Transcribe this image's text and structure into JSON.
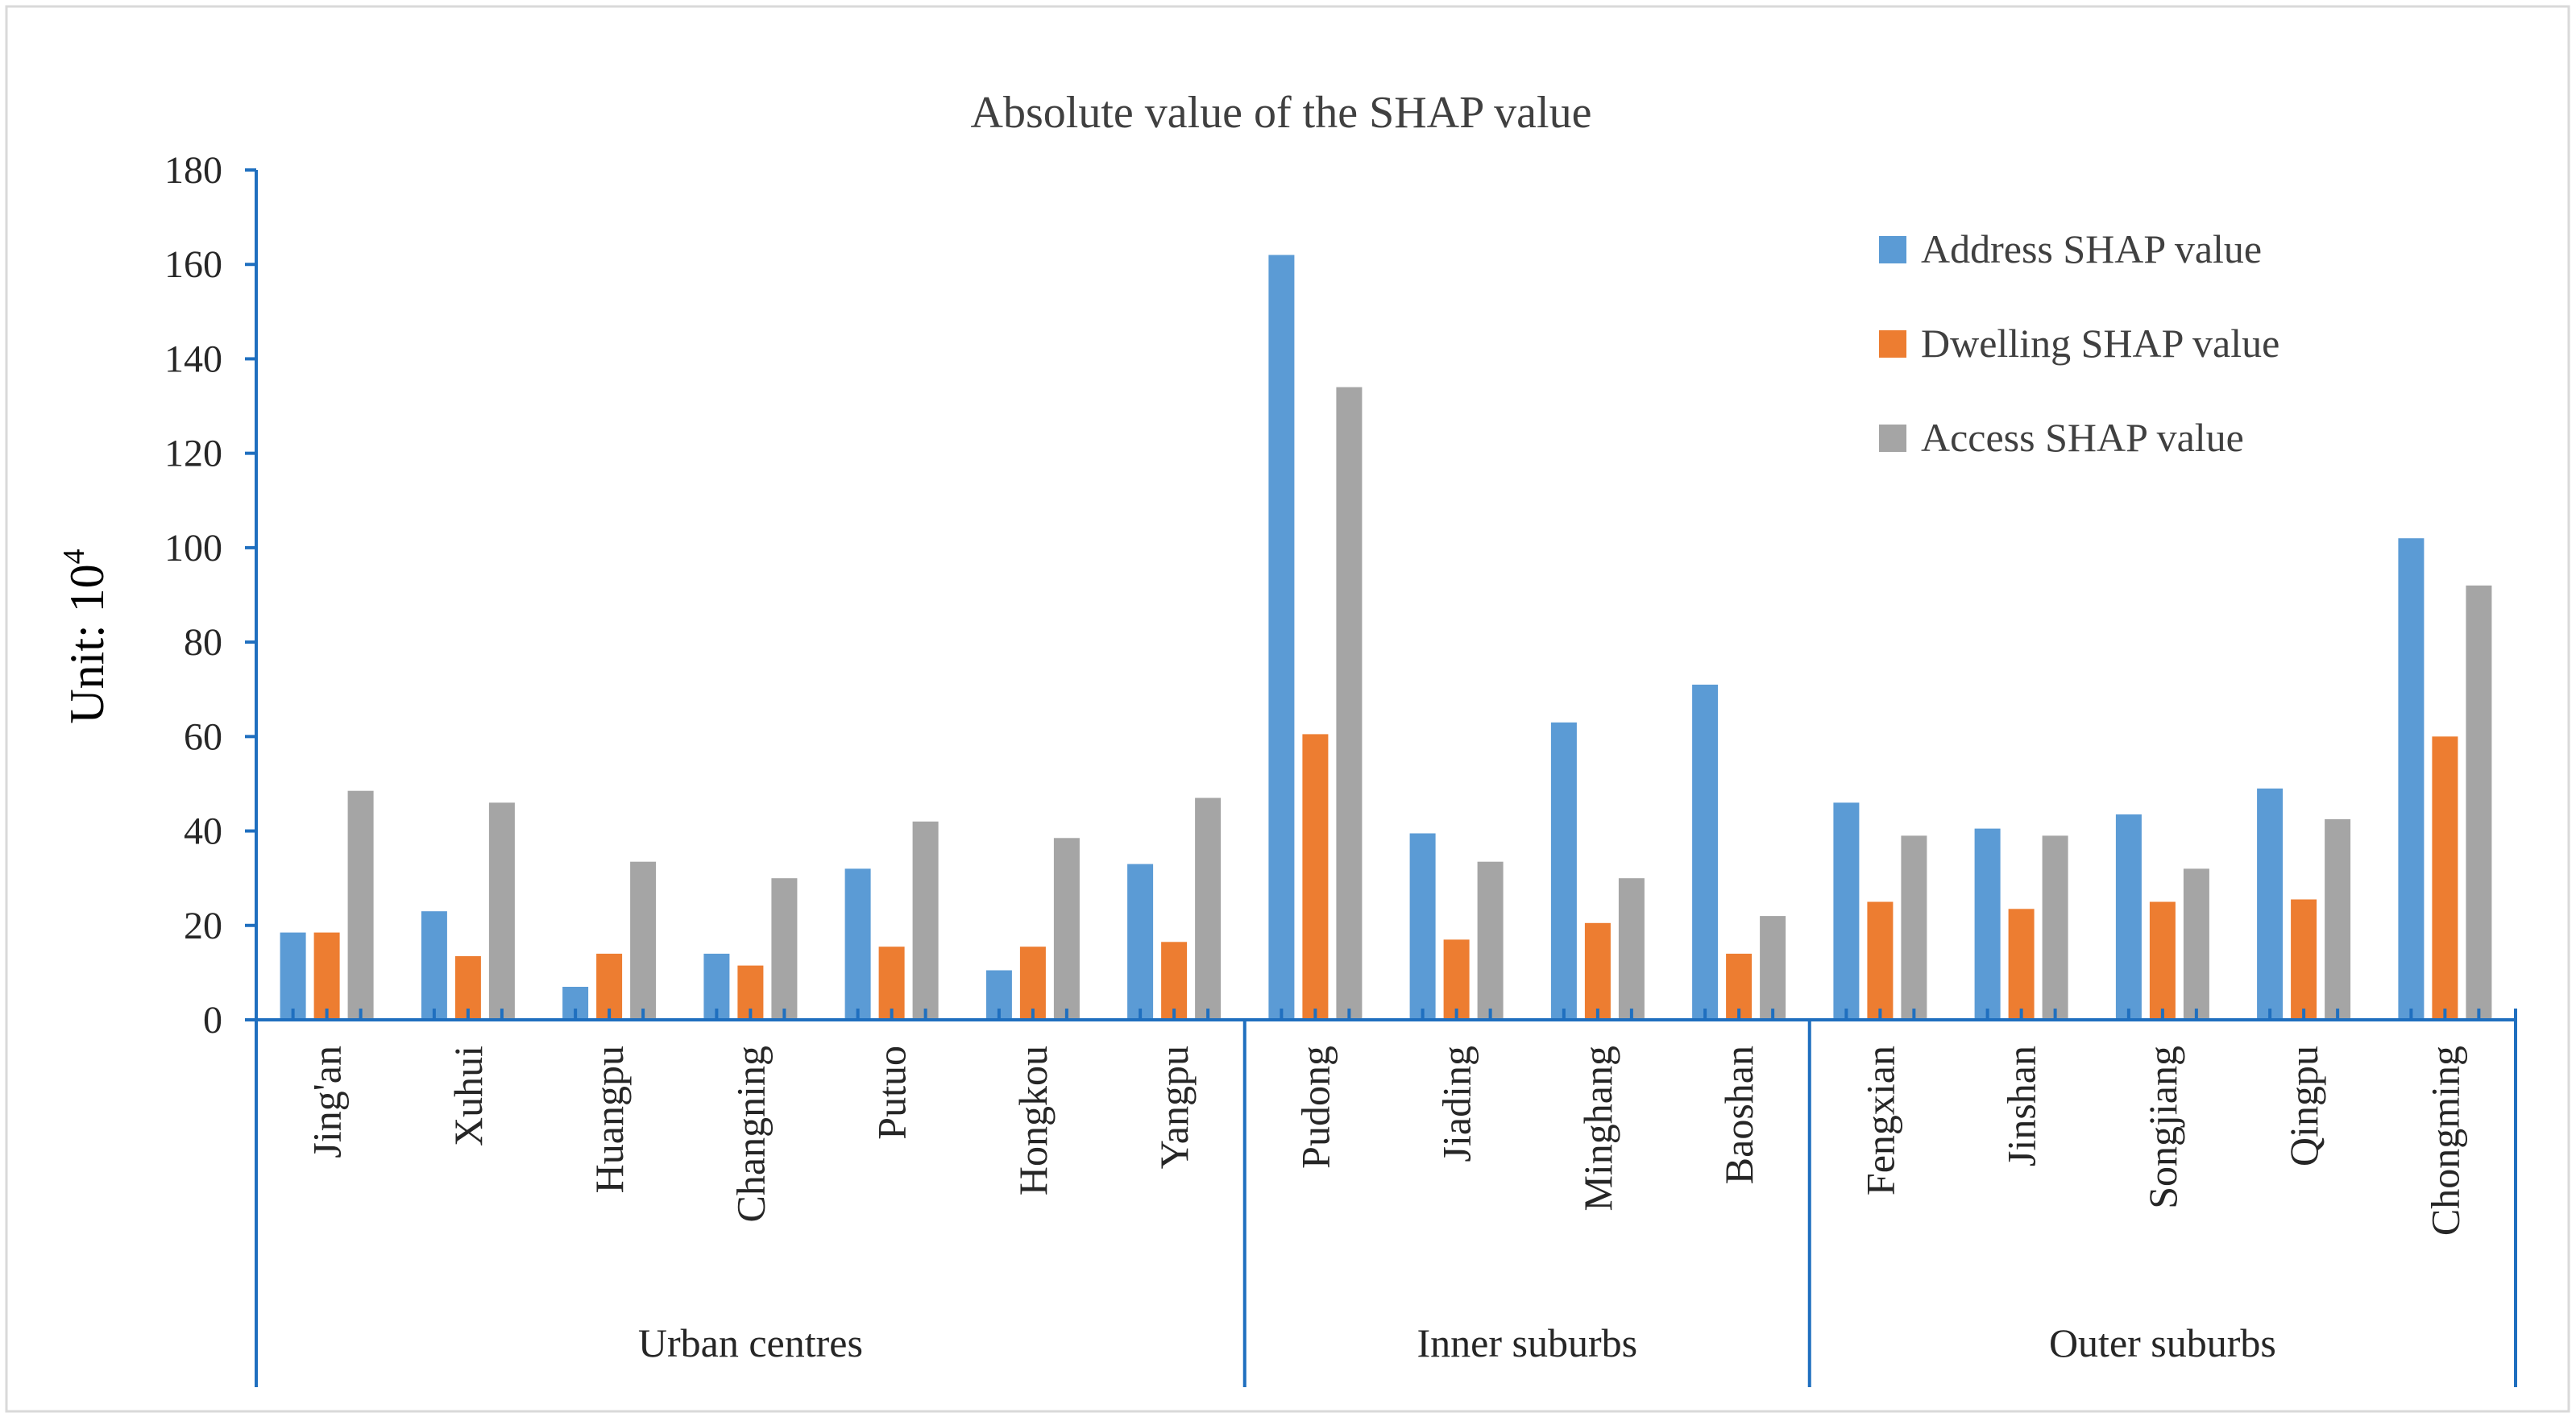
{
  "chart_data": {
    "type": "bar",
    "title": "Absolute value of the SHAP value",
    "ylabel": "Unit: 10",
    "ylabel_superscript": "4",
    "xlabel": "",
    "ylim": [
      0,
      180
    ],
    "yticks": [
      0,
      20,
      40,
      60,
      80,
      100,
      120,
      140,
      160,
      180
    ],
    "legend_position": "top-right",
    "grid": false,
    "categories": [
      "Jing'an",
      "Xuhui",
      "Huangpu",
      "Changning",
      "Putuo",
      "Hongkou",
      "Yangpu",
      "Pudong",
      "Jiading",
      "Minghang",
      "Baoshan",
      "Fengxian",
      "Jinshan",
      "Songjiang",
      "Qingpu",
      "Chongming"
    ],
    "groups": [
      {
        "name": "Urban centres",
        "count": 7
      },
      {
        "name": "Inner suburbs",
        "count": 4
      },
      {
        "name": "Outer suburbs",
        "count": 5
      }
    ],
    "series": [
      {
        "name": "Address SHAP value",
        "color": "#5B9BD5",
        "values": [
          18.5,
          23,
          7,
          14,
          32,
          10.5,
          33,
          162,
          39.5,
          63,
          71,
          46,
          40.5,
          43.5,
          49,
          102
        ]
      },
      {
        "name": "Dwelling SHAP value",
        "color": "#ED7D31",
        "values": [
          18.5,
          13.5,
          14,
          11.5,
          15.5,
          15.5,
          16.5,
          60.5,
          17,
          20.5,
          14,
          25,
          23.5,
          25,
          25.5,
          60
        ]
      },
      {
        "name": "Access SHAP value",
        "color": "#A5A5A5",
        "values": [
          48.5,
          46,
          33.5,
          30,
          42,
          38.5,
          47,
          134,
          33.5,
          30,
          22,
          39,
          39,
          32,
          42.5,
          92
        ]
      }
    ]
  },
  "colors": {
    "axis": "#1F6FBF",
    "border": "#D9D9D9"
  }
}
